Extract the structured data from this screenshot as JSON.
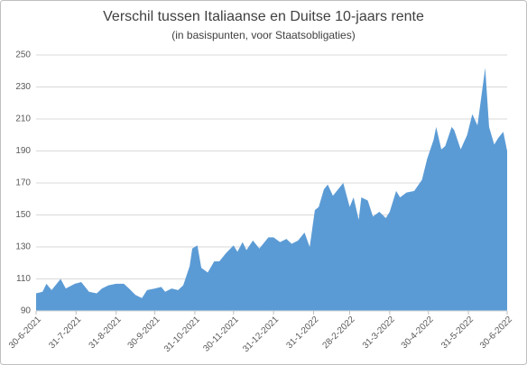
{
  "chart_data": {
    "type": "area",
    "title": "Verschil tussen Italiaanse en Duitse 10-jaars rente",
    "subtitle": "(in basispunten, voor Staatsobligaties)",
    "color": "#5b9bd5",
    "grid": true,
    "xlim": [
      "2021-06-30",
      "2022-06-30"
    ],
    "ylim": [
      90,
      250
    ],
    "yticks": [
      90,
      110,
      130,
      150,
      170,
      190,
      210,
      230,
      250
    ],
    "xticks": [
      {
        "value": "2021-06-30",
        "label": "30-6-2021"
      },
      {
        "value": "2021-07-31",
        "label": "31-7-2021"
      },
      {
        "value": "2021-08-31",
        "label": "31-8-2021"
      },
      {
        "value": "2021-09-30",
        "label": "30-9-2021"
      },
      {
        "value": "2021-10-31",
        "label": "31-10-2021"
      },
      {
        "value": "2021-11-30",
        "label": "30-11-2021"
      },
      {
        "value": "2021-12-31",
        "label": "31-12-2021"
      },
      {
        "value": "2022-01-31",
        "label": "31-1-2022"
      },
      {
        "value": "2022-02-28",
        "label": "28-2-2022"
      },
      {
        "value": "2022-03-31",
        "label": "31-3-2022"
      },
      {
        "value": "2022-04-30",
        "label": "30-4-2022"
      },
      {
        "value": "2022-05-31",
        "label": "31-5-2022"
      },
      {
        "value": "2022-06-30",
        "label": "30-6-2022"
      }
    ],
    "x": [
      "2021-06-30",
      "2021-07-05",
      "2021-07-08",
      "2021-07-12",
      "2021-07-19",
      "2021-07-23",
      "2021-07-30",
      "2021-08-04",
      "2021-08-10",
      "2021-08-16",
      "2021-08-20",
      "2021-08-25",
      "2021-08-31",
      "2021-09-06",
      "2021-09-10",
      "2021-09-15",
      "2021-09-20",
      "2021-09-24",
      "2021-09-30",
      "2021-10-05",
      "2021-10-08",
      "2021-10-13",
      "2021-10-18",
      "2021-10-22",
      "2021-10-27",
      "2021-10-29",
      "2021-11-02",
      "2021-11-05",
      "2021-11-10",
      "2021-11-15",
      "2021-11-19",
      "2021-11-24",
      "2021-11-30",
      "2021-12-03",
      "2021-12-07",
      "2021-12-10",
      "2021-12-15",
      "2021-12-20",
      "2021-12-27",
      "2021-12-31",
      "2022-01-05",
      "2022-01-10",
      "2022-01-14",
      "2022-01-19",
      "2022-01-24",
      "2022-01-28",
      "2022-02-01",
      "2022-02-04",
      "2022-02-08",
      "2022-02-11",
      "2022-02-15",
      "2022-02-18",
      "2022-02-23",
      "2022-02-28",
      "2022-03-03",
      "2022-03-07",
      "2022-03-09",
      "2022-03-14",
      "2022-03-18",
      "2022-03-23",
      "2022-03-28",
      "2022-03-31",
      "2022-04-05",
      "2022-04-08",
      "2022-04-13",
      "2022-04-19",
      "2022-04-25",
      "2022-04-29",
      "2022-05-04",
      "2022-05-06",
      "2022-05-10",
      "2022-05-13",
      "2022-05-18",
      "2022-05-20",
      "2022-05-25",
      "2022-05-30",
      "2022-06-03",
      "2022-06-07",
      "2022-06-13",
      "2022-06-16",
      "2022-06-20",
      "2022-06-23",
      "2022-06-27",
      "2022-06-30"
    ],
    "values": [
      101,
      102,
      107,
      103,
      110,
      104,
      107,
      108,
      102,
      101,
      104,
      106,
      107,
      107,
      104,
      100,
      98,
      103,
      104,
      105,
      102,
      104,
      103,
      106,
      118,
      129,
      131,
      117,
      114,
      121,
      121,
      126,
      131,
      127,
      133,
      128,
      134,
      129,
      136,
      136,
      133,
      135,
      132,
      134,
      139,
      130,
      153,
      155,
      166,
      169,
      162,
      165,
      170,
      155,
      161,
      147,
      161,
      159,
      149,
      152,
      148,
      152,
      165,
      161,
      164,
      165,
      172,
      185,
      197,
      205,
      191,
      193,
      205,
      203,
      191,
      200,
      213,
      206,
      242,
      205,
      194,
      198,
      202,
      190
    ]
  }
}
